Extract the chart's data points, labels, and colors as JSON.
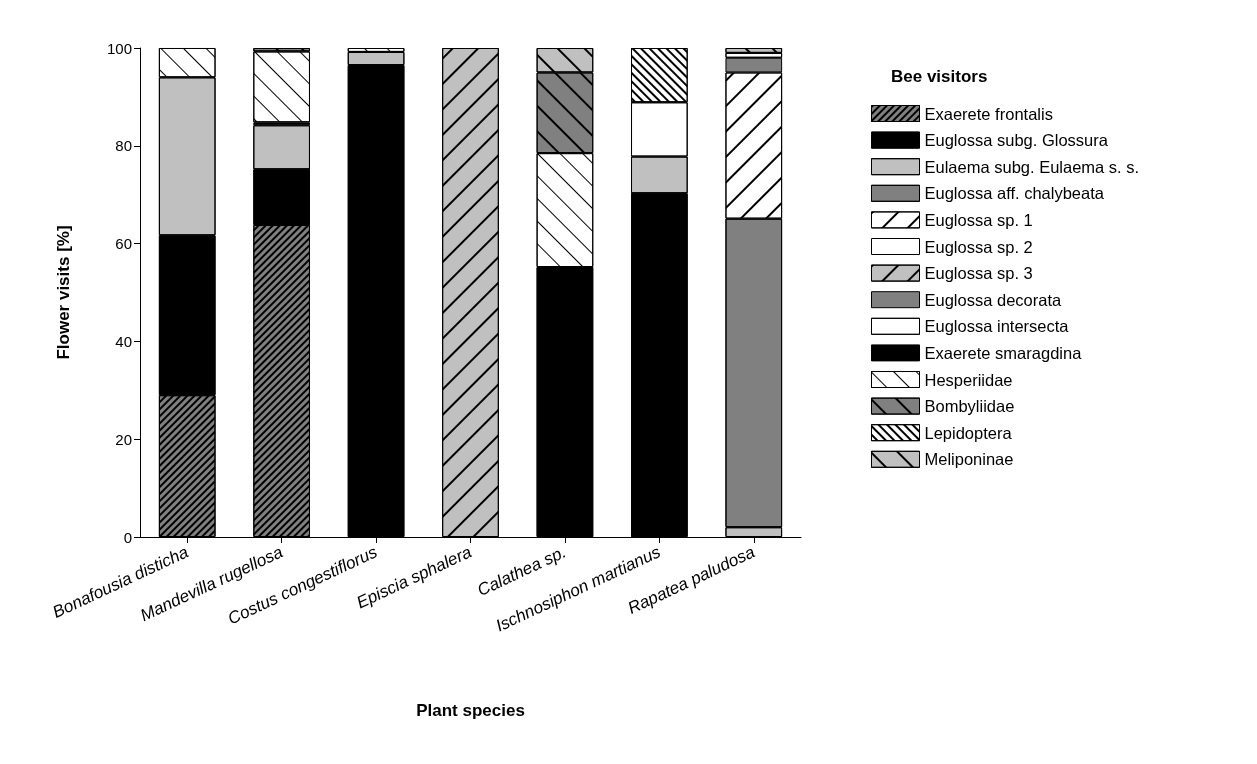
{
  "chart_data": {
    "type": "bar",
    "stacked": true,
    "xlabel": "Plant species",
    "ylabel": "Flower visits [%]",
    "legend_title": "Bee visitors",
    "legend": "right",
    "grid": false,
    "categories": [
      "Bonafousia disticha",
      "Mandevilla rugellosa",
      "Costus congestiflorus",
      "Episcia sphalera",
      "Calathea sp.",
      "Ischnosiphon martianus",
      "Rapatea paludosa"
    ],
    "ylim": [
      0,
      100
    ],
    "yticks": [
      0,
      20,
      40,
      60,
      80,
      100
    ],
    "series": [
      {
        "name": "Exaerete frontalis",
        "color": "#808080",
        "values": [
          29,
          63.8,
          null,
          null,
          null,
          null,
          null
        ]
      },
      {
        "name": "Euglossa subg. Glossura",
        "color": "#000000",
        "values": [
          32.7,
          11.4,
          96.5,
          null,
          55.2,
          70.3,
          null
        ]
      },
      {
        "name": "Eulaema subg. Eulaema s. s.",
        "color": "#c0c0c0",
        "values": [
          32.3,
          9,
          2.7,
          null,
          null,
          7.5,
          2
        ]
      },
      {
        "name": "Euglossa aff. chalybeata",
        "color": "#808080",
        "values": [
          null,
          null,
          null,
          null,
          null,
          null,
          63.1
        ]
      },
      {
        "name": "Euglossa sp. 1",
        "color": "#ffffff",
        "values": [
          null,
          null,
          null,
          null,
          null,
          null,
          29.9
        ]
      },
      {
        "name": "Euglossa sp. 2",
        "color": "#ffffff",
        "values": [
          null,
          null,
          null,
          null,
          null,
          null,
          null
        ]
      },
      {
        "name": "Euglossa sp. 3",
        "color": "#c0c0c0",
        "values": [
          null,
          null,
          null,
          100,
          null,
          null,
          null
        ]
      },
      {
        "name": "Euglossa decorata",
        "color": "#808080",
        "values": [
          null,
          null,
          null,
          null,
          null,
          null,
          3
        ]
      },
      {
        "name": "Euglossa intersecta",
        "color": "#ffffff",
        "values": [
          null,
          null,
          null,
          null,
          null,
          11.1,
          1
        ]
      },
      {
        "name": "Exaerete smaragdina",
        "color": "#000000",
        "values": [
          null,
          0.6,
          null,
          null,
          null,
          null,
          null
        ]
      },
      {
        "name": "Hesperiidae",
        "color": "#ffffff",
        "values": [
          6,
          14.5,
          0.8,
          null,
          23.3,
          null,
          null
        ]
      },
      {
        "name": "Bombyliidae",
        "color": "#808080",
        "values": [
          null,
          0.7,
          null,
          null,
          16.5,
          null,
          null
        ]
      },
      {
        "name": "Lepidoptera",
        "color": "#ffffff",
        "values": [
          null,
          null,
          null,
          null,
          null,
          11.1,
          null
        ]
      },
      {
        "name": "Meliponinae",
        "color": "#c0c0c0",
        "values": [
          null,
          null,
          null,
          null,
          5,
          null,
          1
        ]
      }
    ]
  }
}
